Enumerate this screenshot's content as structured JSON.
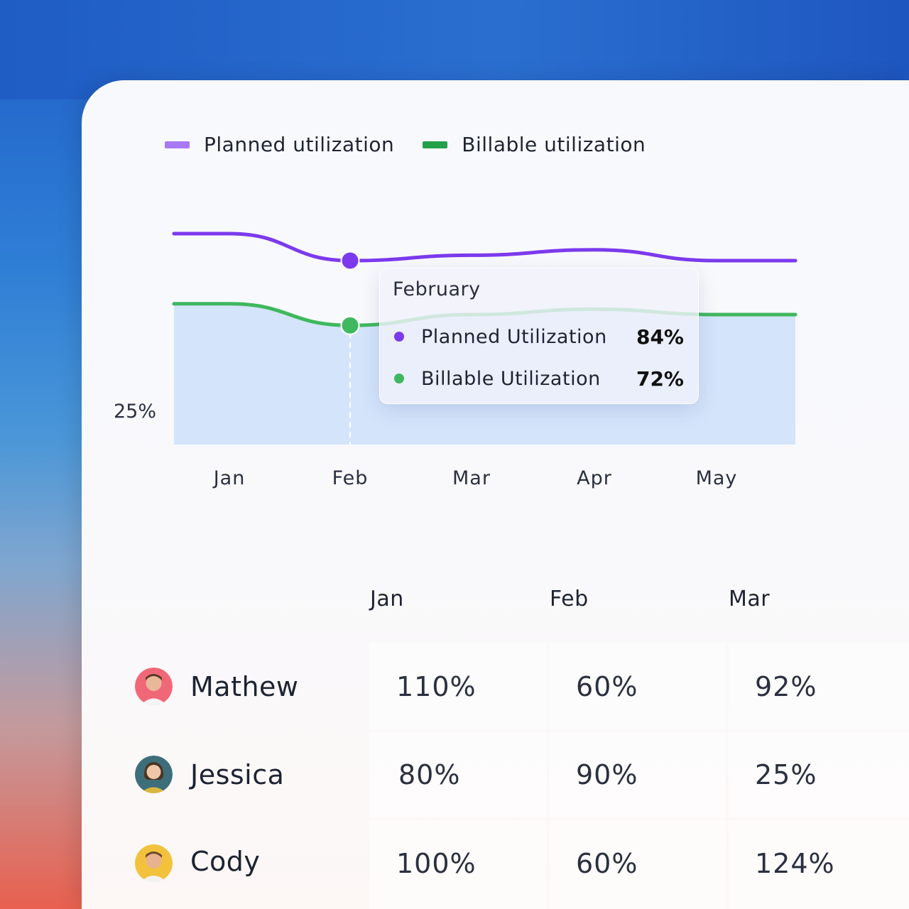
{
  "legend": [
    {
      "label": "Planned utilization",
      "color": "#a879f5"
    },
    {
      "label": "Billable utilization",
      "color": "#23a04a"
    }
  ],
  "chart_data": {
    "type": "area",
    "categories": [
      "Jan",
      "Feb",
      "Mar",
      "Apr",
      "May"
    ],
    "y_tick_labels": [
      "25%"
    ],
    "series": [
      {
        "name": "Planned utilization",
        "color": "#7c3aed",
        "values": [
          89,
          84,
          85,
          86,
          84
        ]
      },
      {
        "name": "Billable utilization",
        "color": "#3fb85f",
        "values": [
          76,
          72,
          74,
          75,
          74
        ]
      }
    ],
    "area_fill": "#d4e4fb",
    "highlight": {
      "category": "Feb"
    }
  },
  "tooltip": {
    "title": "February",
    "rows": [
      {
        "label": "Planned Utilization",
        "value": "84%",
        "color": "#7c3aed"
      },
      {
        "label": "Billable Utilization",
        "value": "72%",
        "color": "#3fb85f"
      }
    ]
  },
  "table": {
    "columns": [
      "Jan",
      "Feb",
      "Mar"
    ],
    "rows": [
      {
        "name": "Mathew",
        "values": [
          "110%",
          "60%",
          "92%"
        ],
        "avatar_color": "#f06878"
      },
      {
        "name": "Jessica",
        "values": [
          "80%",
          "90%",
          "25%"
        ],
        "avatar_color": "#3d6f7a"
      },
      {
        "name": "Cody",
        "values": [
          "100%",
          "60%",
          "124%"
        ],
        "avatar_color": "#f2c23c"
      }
    ]
  }
}
